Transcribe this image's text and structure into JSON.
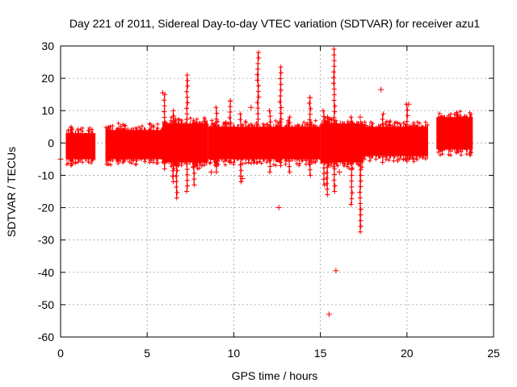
{
  "chart_data": {
    "type": "scatter",
    "title": "Day 221 of 2011, Sidereal Day-to-day VTEC variation (SDTVAR) for receiver azu1",
    "xlabel": "GPS time / hours",
    "ylabel": "SDTVAR / TECUs",
    "xlim": [
      0,
      25
    ],
    "ylim": [
      -60,
      30
    ],
    "xticks": [
      0,
      5,
      10,
      15,
      20,
      25
    ],
    "yticks": [
      -60,
      -50,
      -40,
      -30,
      -20,
      -10,
      0,
      10,
      20,
      30
    ],
    "grid": true,
    "marker": "+",
    "color": "#ff0000",
    "dense_bands": [
      {
        "x_start": 0.3,
        "x_end": 2.0,
        "low": -5,
        "high": 3
      },
      {
        "x_start": 2.6,
        "x_end": 5.9,
        "low": -5,
        "high": 4
      },
      {
        "x_start": 5.9,
        "x_end": 8.5,
        "low": -6,
        "high": 6
      },
      {
        "x_start": 8.5,
        "x_end": 11.5,
        "low": -5,
        "high": 5
      },
      {
        "x_start": 11.5,
        "x_end": 15.0,
        "low": -5,
        "high": 5
      },
      {
        "x_start": 15.0,
        "x_end": 17.5,
        "low": -6,
        "high": 6
      },
      {
        "x_start": 17.5,
        "x_end": 21.2,
        "low": -4,
        "high": 5
      },
      {
        "x_start": 21.7,
        "x_end": 23.8,
        "low": -2,
        "high": 8
      }
    ],
    "spikes": [
      {
        "x": 6.0,
        "y_low": -8,
        "y_high": 15
      },
      {
        "x": 6.5,
        "y_low": -12,
        "y_high": 10
      },
      {
        "x": 6.7,
        "y_low": -17,
        "y_high": 5
      },
      {
        "x": 7.3,
        "y_low": -15,
        "y_high": 21
      },
      {
        "x": 7.7,
        "y_low": -13,
        "y_high": 7
      },
      {
        "x": 9.0,
        "y_low": -9,
        "y_high": 11
      },
      {
        "x": 9.8,
        "y_low": -6,
        "y_high": 13
      },
      {
        "x": 10.4,
        "y_low": -12,
        "y_high": 9
      },
      {
        "x": 11.4,
        "y_low": -3,
        "y_high": 28
      },
      {
        "x": 12.1,
        "y_low": -9,
        "y_high": 10
      },
      {
        "x": 12.7,
        "y_low": -7,
        "y_high": 23.5
      },
      {
        "x": 13.2,
        "y_low": -9,
        "y_high": 8
      },
      {
        "x": 14.4,
        "y_low": -10,
        "y_high": 14
      },
      {
        "x": 15.2,
        "y_low": -13,
        "y_high": 10
      },
      {
        "x": 15.4,
        "y_low": -16,
        "y_high": 8
      },
      {
        "x": 15.8,
        "y_low": -15,
        "y_high": 29
      },
      {
        "x": 16.8,
        "y_low": -19,
        "y_high": 8
      },
      {
        "x": 17.3,
        "y_low": -27.5,
        "y_high": 4
      },
      {
        "x": 18.6,
        "y_low": -6,
        "y_high": 9
      },
      {
        "x": 20.0,
        "y_low": -4,
        "y_high": 12
      }
    ],
    "outliers": [
      {
        "x": 0.0,
        "y": -5
      },
      {
        "x": 5.9,
        "y": 15.5
      },
      {
        "x": 9.8,
        "y": 13
      },
      {
        "x": 12.6,
        "y": -20
      },
      {
        "x": 14.4,
        "y": 14
      },
      {
        "x": 15.5,
        "y": -53
      },
      {
        "x": 15.9,
        "y": -39.5
      },
      {
        "x": 18.5,
        "y": 16.5
      },
      {
        "x": 20.1,
        "y": 12
      },
      {
        "x": 11.0,
        "y": 11
      },
      {
        "x": 8.7,
        "y": -9
      },
      {
        "x": 10.5,
        "y": -11
      },
      {
        "x": 16.1,
        "y": -9
      },
      {
        "x": 17.3,
        "y": 8
      }
    ]
  }
}
